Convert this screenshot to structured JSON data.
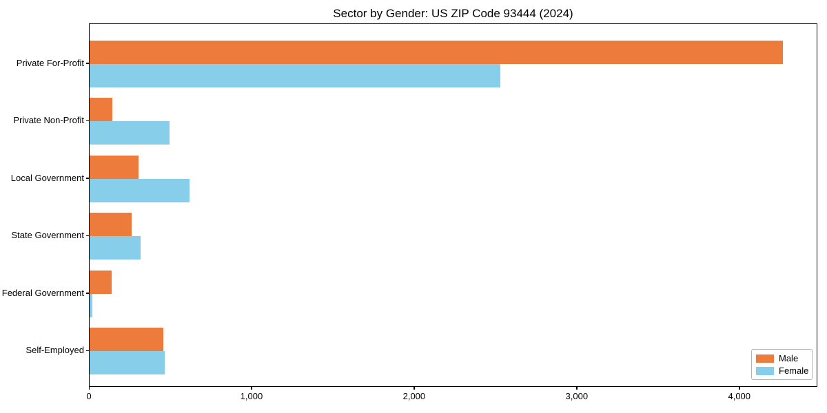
{
  "chart_data": {
    "type": "bar",
    "orientation": "horizontal",
    "title": "Sector by Gender: US ZIP Code 93444 (2024)",
    "categories": [
      "Private For-Profit",
      "Private Non-Profit",
      "Local Government",
      "State Government",
      "Federal Government",
      "Self-Employed"
    ],
    "series": [
      {
        "name": "Male",
        "color": "#ec7b3c",
        "values": [
          4265,
          140,
          300,
          260,
          135,
          455
        ]
      },
      {
        "name": "Female",
        "color": "#87ceeb",
        "values": [
          2525,
          490,
          615,
          315,
          15,
          460
        ]
      }
    ],
    "xlabel": "",
    "ylabel": "",
    "xlim": [
      0,
      4480
    ],
    "xticks": [
      0,
      1000,
      2000,
      3000,
      4000
    ],
    "xtick_labels": [
      "0",
      "1,000",
      "2,000",
      "3,000",
      "4,000"
    ],
    "legend_position": "lower right",
    "grid": false,
    "background_color": "#ffffff",
    "spine_color": "#000000"
  }
}
